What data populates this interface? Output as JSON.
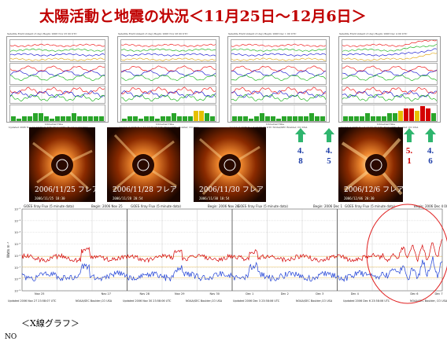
{
  "title": "太陽活動と地震の状況＜11月25日～12月6日＞",
  "top_panels": [
    {
      "header": "Satellite Environment  (3 day)          Begin:  2006 Nov 25 00 UTC",
      "footer": "Updated 2006 Nov 27 23:59:21 UTC       NOAA/SEC Boulder, CO USA"
    },
    {
      "header": "Satellite Environment  (3 day)          Begin:  2006 Nov 28 00 UTC",
      "footer": "Updated 2006 Nov 30 23:59:06 UTC       NOAA/SEC Boulder, CO USA"
    },
    {
      "header": "Satellite Environment  (3 day)          Begin:  2006 Dec 1 00 UTC",
      "footer": "Updated 2006 Dec 3 23:59:06 UTC       NOAA/SEC Boulder, CO USA"
    },
    {
      "header": "Satellite Environment  (3 day)          Begin:  2006 Dec 4 00 UTC",
      "footer": "Updated 2006 Dec 6 23:59:06 UTC       NOAA/SEC Boulder, CO USA"
    }
  ],
  "universal_time_label": "Universal Time",
  "photos": [
    {
      "label": "2006/11/25  フレア",
      "date": "2006/11/25 18:30"
    },
    {
      "label": "2006/11/28  フレア",
      "date": "2006/11/28 20:54"
    },
    {
      "label": "2006/11/30  フレア",
      "date": "2006/11/30 10:54"
    },
    {
      "label": "2006/12/6   フレア",
      "date": "2006/12/06 20:30"
    }
  ],
  "magnitudes": [
    {
      "top": "4.",
      "bottom": "8",
      "color": "#1f3fa8"
    },
    {
      "top": "4.",
      "bottom": "5",
      "color": "#1f3fa8"
    },
    {
      "top": "5.",
      "bottom": "1",
      "color": "#d40000"
    },
    {
      "top": "4.",
      "bottom": "6",
      "color": "#1f3fa8"
    }
  ],
  "xray_headers": [
    "GOES Xray Flux (5 minute data)",
    "Begin:  2006 Nov 25",
    "GOES Xray Flux (5 minute data)",
    "Begin:  2006 Nov 28",
    "GOES Xray Flux (5 minute data)",
    "Begin:  2006 Dec 1",
    "GOES Xray Flux (5 minute data)",
    "Begin:  2006 Dec 4 000"
  ],
  "xray_ylabel": "Watts m⁻²",
  "xray_yticks": [
    "10⁻²",
    "10⁻³",
    "10⁻⁴",
    "10⁻⁵",
    "10⁻⁶",
    "10⁻⁷",
    "10⁻⁸",
    "10⁻⁹"
  ],
  "xray_dates": [
    "Nov 25",
    "Nov 27",
    "Nov 28",
    "Nov 29",
    "Nov 30",
    "Dec 1",
    "Dec 2",
    "Dec 3",
    "Dec 4",
    "Dec 6",
    "Dec 7"
  ],
  "xray_footers": [
    "Updated 2006 Nov 27 23:58:07 UTC",
    "NOAA/SEC Boulder,CO USA",
    "Updated 2006 Nov 30 23:58:06 UTC",
    "NOAA/SEC Boulder,CO USA",
    "Updated 2006 Dec  3 23:58:06 UTC",
    "NOAA/SEC Boulder,CO USA",
    "Updated 2006 Dec  6 23:58:06 UTC",
    "NOAA/SEC Boulder, CO USA"
  ],
  "caption": "＜X線グラフ＞",
  "page_number": "NO",
  "colors": {
    "title": "#c00000",
    "arrow": "#2fb56e",
    "xray_long": "#d40000",
    "xray_short": "#1d3fd6",
    "circle": "#e02020"
  }
}
